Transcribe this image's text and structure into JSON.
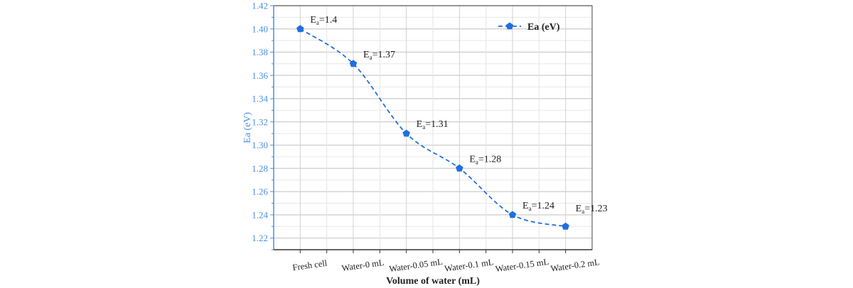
{
  "chart_data": {
    "type": "line",
    "title": "",
    "xlabel": "Volume of water (mL)",
    "ylabel": "Ea (eV)",
    "categories": [
      "Fresh cell",
      "Water-0 mL",
      "Water-0.05 mL",
      "Water-0.1 mL",
      "Water-0.15 mL",
      "Water-0.2 mL"
    ],
    "series": [
      {
        "name": "Ea (eV)",
        "values": [
          1.4,
          1.37,
          1.31,
          1.28,
          1.24,
          1.23
        ],
        "color": "#1f6fe0",
        "line_style": "dashed",
        "marker": "pentagon"
      }
    ],
    "data_labels": [
      "1.4",
      "1.37",
      "1.31",
      "1.28",
      "1.24",
      "1.23"
    ],
    "data_label_prefix": "E",
    "data_label_subscript": "a",
    "ylim": [
      1.21,
      1.42
    ],
    "yticks": [
      "1.22",
      "1.24",
      "1.26",
      "1.28",
      "1.30",
      "1.32",
      "1.34",
      "1.36",
      "1.38",
      "1.40",
      "1.42"
    ],
    "grid": true,
    "legend": "top-right",
    "axis_color": "#4a8fe6"
  }
}
